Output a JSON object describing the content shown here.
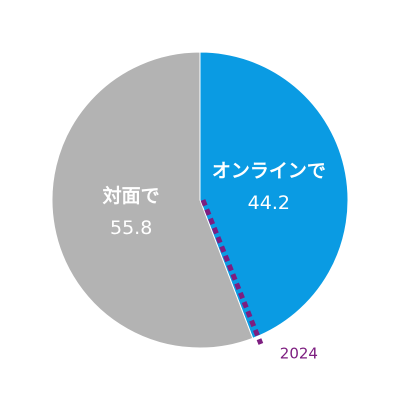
{
  "chart_data": {
    "type": "pie",
    "categories": [
      "オンラインで",
      "対面で"
    ],
    "values": [
      44.2,
      55.8
    ],
    "colors": [
      "#0a9be3",
      "#b3b3b3"
    ],
    "annotation": {
      "label": "2024",
      "color": "#7d1e80"
    }
  }
}
